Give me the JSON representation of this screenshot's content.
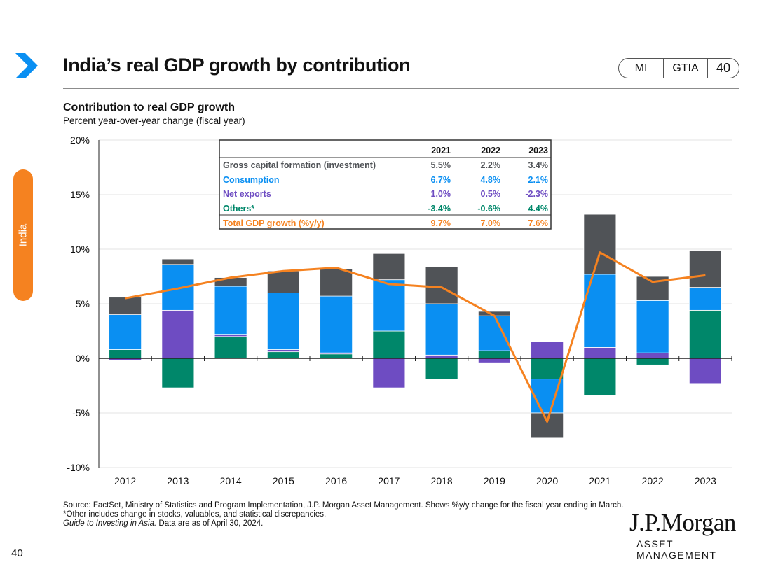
{
  "header": {
    "title": "India’s real GDP growth by contribution",
    "badge": [
      "MI",
      "GTIA",
      "40"
    ]
  },
  "sidebar": {
    "tab_label": "India"
  },
  "chart_heading": {
    "title": "Contribution to real GDP growth",
    "subtitle": "Percent year-over-year change (fiscal year)"
  },
  "chart_data": {
    "type": "bar",
    "stacked": true,
    "categories": [
      "2012",
      "2013",
      "2014",
      "2015",
      "2016",
      "2017",
      "2018",
      "2019",
      "2020",
      "2021",
      "2022",
      "2023"
    ],
    "series": [
      {
        "name": "Others*",
        "color": "#00876a",
        "values": [
          0.8,
          -2.7,
          2.0,
          0.6,
          0.4,
          2.5,
          -1.9,
          0.7,
          -1.9,
          -3.4,
          -0.6,
          4.4
        ]
      },
      {
        "name": "Net exports",
        "color": "#6e4cc2",
        "values": [
          -0.2,
          4.4,
          0.2,
          0.2,
          0.1,
          -2.7,
          0.3,
          -0.4,
          1.5,
          1.0,
          0.5,
          -2.3
        ]
      },
      {
        "name": "Consumption",
        "color": "#0a8ff2",
        "values": [
          3.2,
          4.2,
          4.4,
          5.2,
          5.2,
          4.7,
          4.7,
          3.2,
          -3.1,
          6.7,
          4.8,
          2.1
        ]
      },
      {
        "name": "Gross capital formation (investment)",
        "color": "#505357",
        "values": [
          1.6,
          0.5,
          0.8,
          2.0,
          2.5,
          2.4,
          3.4,
          0.4,
          -2.3,
          5.5,
          2.2,
          3.4
        ]
      }
    ],
    "line": {
      "name": "Total GDP growth (%y/y)",
      "color": "#f58220",
      "values": [
        5.5,
        6.4,
        7.4,
        8.0,
        8.3,
        6.8,
        6.5,
        3.9,
        -5.8,
        9.7,
        7.0,
        7.6
      ]
    },
    "ylim": [
      -10,
      20
    ],
    "yticks": [
      -10,
      -5,
      0,
      5,
      10,
      15,
      20
    ],
    "ytick_labels": [
      "-10%",
      "-5%",
      "0%",
      "5%",
      "10%",
      "15%",
      "20%"
    ],
    "table": {
      "headers": [
        "2021",
        "2022",
        "2023"
      ],
      "rows": [
        {
          "label": "Gross capital formation (investment)",
          "color": "#505357",
          "values": [
            "5.5%",
            "2.2%",
            "3.4%"
          ]
        },
        {
          "label": "Consumption",
          "color": "#0a8ff2",
          "values": [
            "6.7%",
            "4.8%",
            "2.1%"
          ]
        },
        {
          "label": "Net exports",
          "color": "#6e4cc2",
          "values": [
            "1.0%",
            "0.5%",
            "-2.3%"
          ]
        },
        {
          "label": "Others*",
          "color": "#00876a",
          "values": [
            "-3.4%",
            "-0.6%",
            "4.4%"
          ]
        },
        {
          "label": "Total GDP growth (%y/y)",
          "color": "#f58220",
          "values": [
            "9.7%",
            "7.0%",
            "7.6%"
          ]
        }
      ]
    }
  },
  "footer": {
    "source": "Source: FactSet, Ministry of Statistics and Program Implementation, J.P. Morgan Asset Management. Shows %y/y change for the fiscal year ending in March. *Other includes change in stocks, valuables, and statistical discrepancies.",
    "guide": "Guide to Investing in Asia.",
    "asof": "Data are as of April 30, 2024.",
    "logo_main": "J.P.Morgan",
    "logo_sub": "ASSET MANAGEMENT",
    "page_number": "40"
  },
  "colors": {
    "accent": "#f58220",
    "brand_blue": "#0a8ff2"
  }
}
